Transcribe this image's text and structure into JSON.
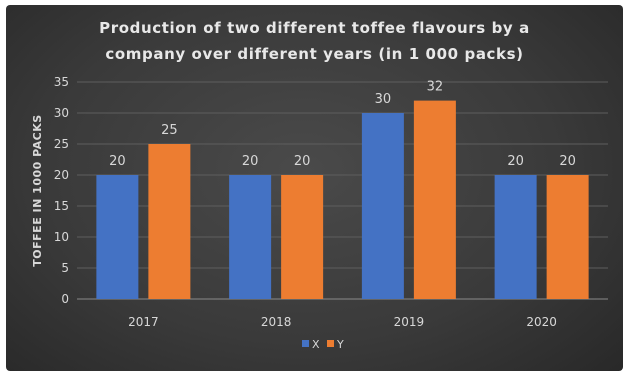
{
  "chart_data": {
    "type": "bar",
    "title_line1": "Production of two different toffee flavours by a",
    "title_line2": "company over different years  (in 1 000 packs)",
    "xlabel": "",
    "ylabel": "TOFFEE IN 1000 PACKS",
    "ylim": [
      0,
      35
    ],
    "yticks": [
      0,
      5,
      10,
      15,
      20,
      25,
      30,
      35
    ],
    "categories": [
      "2017",
      "2018",
      "2019",
      "2020"
    ],
    "series": [
      {
        "name": "X",
        "values": [
          20,
          20,
          30,
          20
        ],
        "color": "#4472c4"
      },
      {
        "name": "Y",
        "values": [
          25,
          20,
          32,
          20
        ],
        "color": "#ed7d31"
      }
    ],
    "grid": true,
    "legend": "bottom",
    "data_labels": true
  }
}
